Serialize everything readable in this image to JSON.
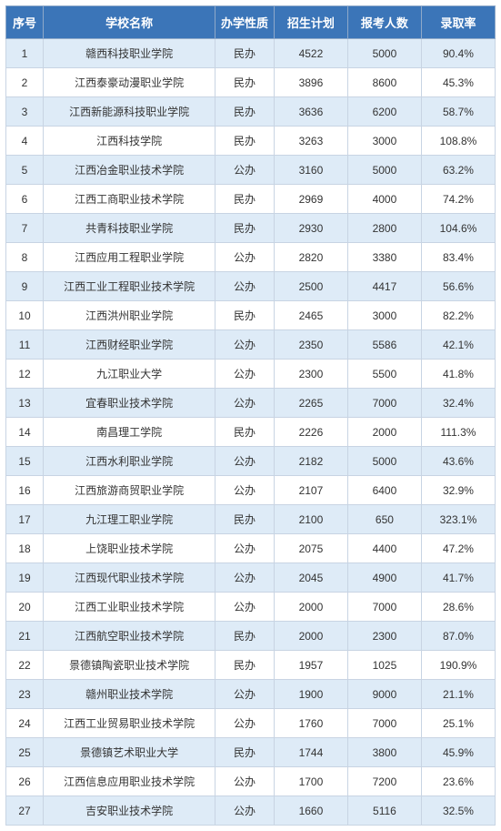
{
  "table": {
    "header_bg": "#3b75b8",
    "header_color": "#ffffff",
    "row_even_bg": "#deebf7",
    "row_odd_bg": "#ffffff",
    "border_color": "#c8d4e3",
    "font_size_header": 13,
    "font_size_cell": 12,
    "columns": [
      {
        "key": "seq",
        "label": "序号",
        "width": 38
      },
      {
        "key": "name",
        "label": "学校名称",
        "width": 175
      },
      {
        "key": "type",
        "label": "办学性质",
        "width": 60
      },
      {
        "key": "plan",
        "label": "招生计划",
        "width": 75
      },
      {
        "key": "app",
        "label": "报考人数",
        "width": 75
      },
      {
        "key": "rate",
        "label": "录取率",
        "width": 75
      }
    ],
    "rows": [
      {
        "seq": "1",
        "name": "赣西科技职业学院",
        "type": "民办",
        "plan": "4522",
        "app": "5000",
        "rate": "90.4%"
      },
      {
        "seq": "2",
        "name": "江西泰豪动漫职业学院",
        "type": "民办",
        "plan": "3896",
        "app": "8600",
        "rate": "45.3%"
      },
      {
        "seq": "3",
        "name": "江西新能源科技职业学院",
        "type": "民办",
        "plan": "3636",
        "app": "6200",
        "rate": "58.7%"
      },
      {
        "seq": "4",
        "name": "江西科技学院",
        "type": "民办",
        "plan": "3263",
        "app": "3000",
        "rate": "108.8%"
      },
      {
        "seq": "5",
        "name": "江西冶金职业技术学院",
        "type": "公办",
        "plan": "3160",
        "app": "5000",
        "rate": "63.2%"
      },
      {
        "seq": "6",
        "name": "江西工商职业技术学院",
        "type": "民办",
        "plan": "2969",
        "app": "4000",
        "rate": "74.2%"
      },
      {
        "seq": "7",
        "name": "共青科技职业学院",
        "type": "民办",
        "plan": "2930",
        "app": "2800",
        "rate": "104.6%"
      },
      {
        "seq": "8",
        "name": "江西应用工程职业学院",
        "type": "公办",
        "plan": "2820",
        "app": "3380",
        "rate": "83.4%"
      },
      {
        "seq": "9",
        "name": "江西工业工程职业技术学院",
        "type": "公办",
        "plan": "2500",
        "app": "4417",
        "rate": "56.6%"
      },
      {
        "seq": "10",
        "name": "江西洪州职业学院",
        "type": "民办",
        "plan": "2465",
        "app": "3000",
        "rate": "82.2%"
      },
      {
        "seq": "11",
        "name": "江西财经职业学院",
        "type": "公办",
        "plan": "2350",
        "app": "5586",
        "rate": "42.1%"
      },
      {
        "seq": "12",
        "name": "九江职业大学",
        "type": "公办",
        "plan": "2300",
        "app": "5500",
        "rate": "41.8%"
      },
      {
        "seq": "13",
        "name": "宜春职业技术学院",
        "type": "公办",
        "plan": "2265",
        "app": "7000",
        "rate": "32.4%"
      },
      {
        "seq": "14",
        "name": "南昌理工学院",
        "type": "民办",
        "plan": "2226",
        "app": "2000",
        "rate": "111.3%"
      },
      {
        "seq": "15",
        "name": "江西水利职业学院",
        "type": "公办",
        "plan": "2182",
        "app": "5000",
        "rate": "43.6%"
      },
      {
        "seq": "16",
        "name": "江西旅游商贸职业学院",
        "type": "公办",
        "plan": "2107",
        "app": "6400",
        "rate": "32.9%"
      },
      {
        "seq": "17",
        "name": "九江理工职业学院",
        "type": "民办",
        "plan": "2100",
        "app": "650",
        "rate": "323.1%"
      },
      {
        "seq": "18",
        "name": "上饶职业技术学院",
        "type": "公办",
        "plan": "2075",
        "app": "4400",
        "rate": "47.2%"
      },
      {
        "seq": "19",
        "name": "江西现代职业技术学院",
        "type": "公办",
        "plan": "2045",
        "app": "4900",
        "rate": "41.7%"
      },
      {
        "seq": "20",
        "name": "江西工业职业技术学院",
        "type": "公办",
        "plan": "2000",
        "app": "7000",
        "rate": "28.6%"
      },
      {
        "seq": "21",
        "name": "江西航空职业技术学院",
        "type": "民办",
        "plan": "2000",
        "app": "2300",
        "rate": "87.0%"
      },
      {
        "seq": "22",
        "name": "景德镇陶瓷职业技术学院",
        "type": "民办",
        "plan": "1957",
        "app": "1025",
        "rate": "190.9%"
      },
      {
        "seq": "23",
        "name": "赣州职业技术学院",
        "type": "公办",
        "plan": "1900",
        "app": "9000",
        "rate": "21.1%"
      },
      {
        "seq": "24",
        "name": "江西工业贸易职业技术学院",
        "type": "公办",
        "plan": "1760",
        "app": "7000",
        "rate": "25.1%"
      },
      {
        "seq": "25",
        "name": "景德镇艺术职业大学",
        "type": "民办",
        "plan": "1744",
        "app": "3800",
        "rate": "45.9%"
      },
      {
        "seq": "26",
        "name": "江西信息应用职业技术学院",
        "type": "公办",
        "plan": "1700",
        "app": "7200",
        "rate": "23.6%"
      },
      {
        "seq": "27",
        "name": "吉安职业技术学院",
        "type": "公办",
        "plan": "1660",
        "app": "5116",
        "rate": "32.5%"
      }
    ]
  }
}
